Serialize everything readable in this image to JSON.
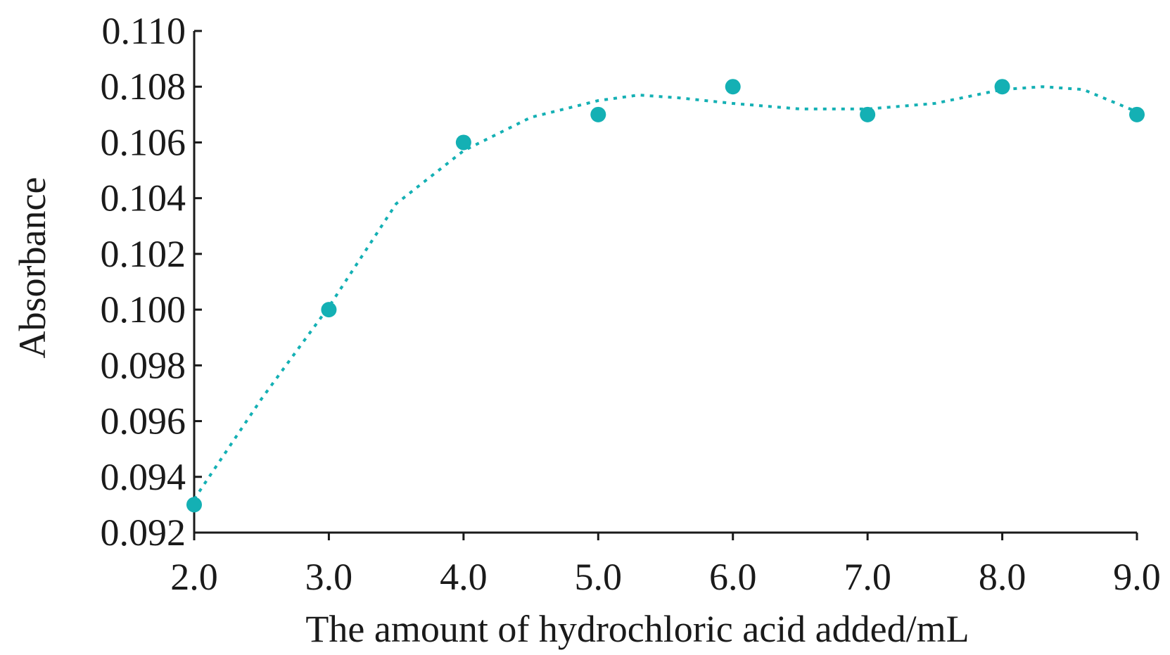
{
  "chart_data": {
    "type": "scatter",
    "title": "",
    "xlabel": "The amount of hydrochloric acid added/mL",
    "ylabel": "Absorbance",
    "xlim": [
      2.0,
      9.0
    ],
    "ylim": [
      0.092,
      0.11
    ],
    "x_ticks": [
      "2.0",
      "3.0",
      "4.0",
      "5.0",
      "6.0",
      "7.0",
      "8.0",
      "9.0"
    ],
    "y_ticks": [
      "0.092",
      "0.094",
      "0.096",
      "0.098",
      "0.100",
      "0.102",
      "0.104",
      "0.106",
      "0.108",
      "0.110"
    ],
    "grid": false,
    "legend": "none",
    "series": [
      {
        "x": [
          2.0,
          3.0,
          4.0,
          5.0,
          6.0,
          7.0,
          8.0,
          9.0
        ],
        "y": [
          0.093,
          0.1,
          0.106,
          0.107,
          0.108,
          0.107,
          0.108,
          0.107
        ],
        "color": "#14b0b4",
        "marker": "circle"
      }
    ],
    "trend_line": {
      "style": "dotted",
      "color": "#14b0b4",
      "x": [
        2.0,
        2.5,
        3.0,
        3.5,
        4.0,
        4.5,
        5.0,
        5.3,
        5.6,
        6.0,
        6.5,
        7.0,
        7.5,
        8.0,
        8.3,
        8.6,
        9.0
      ],
      "y": [
        0.0932,
        0.0968,
        0.1001,
        0.1038,
        0.1057,
        0.1069,
        0.1075,
        0.1077,
        0.1076,
        0.1074,
        0.1072,
        0.1072,
        0.1074,
        0.1079,
        0.108,
        0.1079,
        0.1071
      ]
    }
  }
}
